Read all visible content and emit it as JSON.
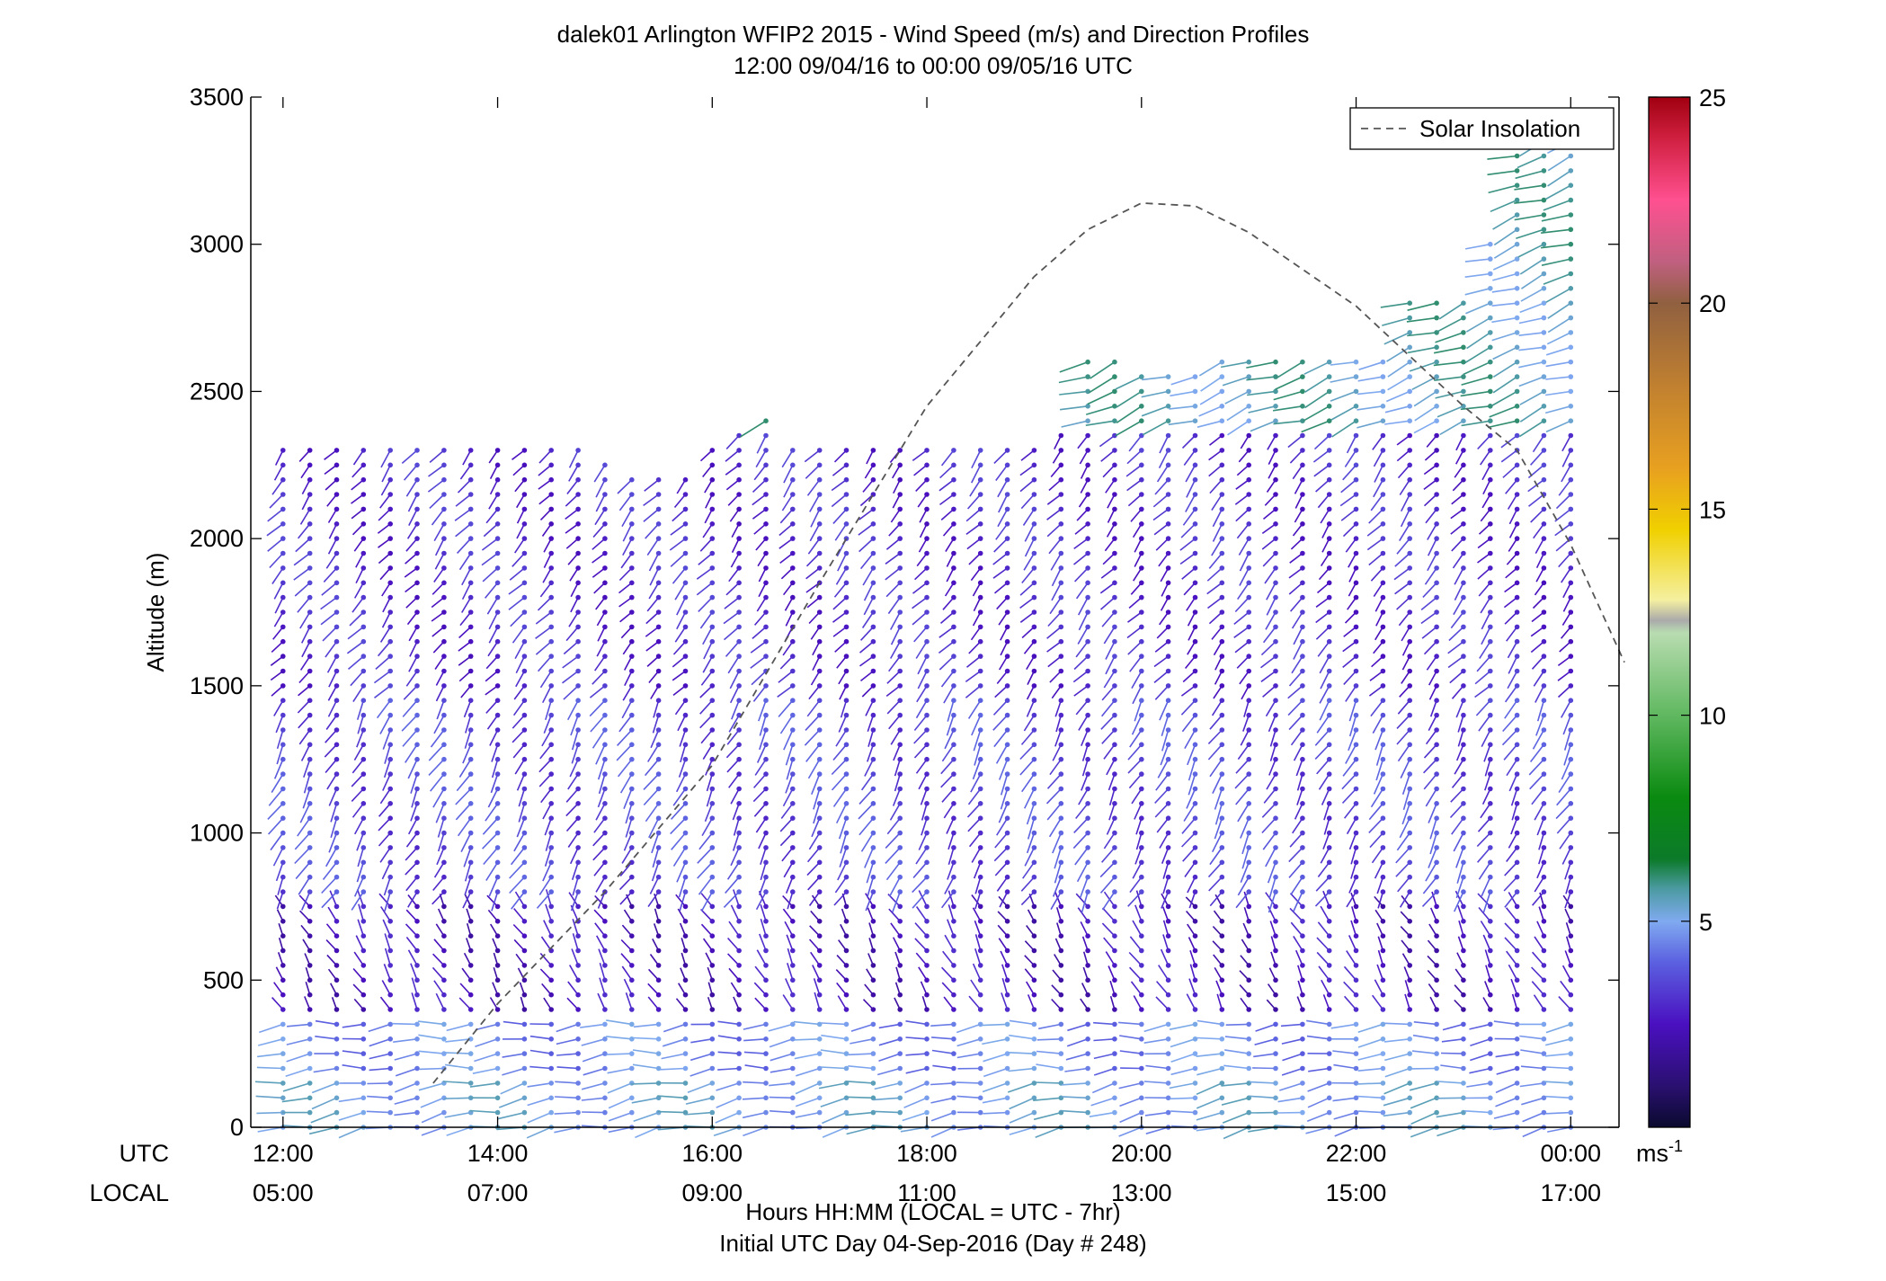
{
  "chart_data": {
    "type": "scatter",
    "title_line1": "dalek01 Arlington WFIP2 2015 - Wind Speed (m/s) and Direction Profiles",
    "title_line2": "12:00 09/04/16 to 00:00 09/05/16  UTC",
    "ylabel": "Altitude (m)",
    "ylim": [
      0,
      3500
    ],
    "yticks": [
      "0",
      "500",
      "1000",
      "1500",
      "2000",
      "2500",
      "3000",
      "3500"
    ],
    "ytick_values": [
      0,
      500,
      1000,
      1500,
      2000,
      2500,
      3000,
      3500
    ],
    "xlim_hours": [
      11.7,
      24.45
    ],
    "xticks": [
      {
        "hour": 12,
        "utc": "12:00",
        "local": "05:00"
      },
      {
        "hour": 14,
        "utc": "14:00",
        "local": "07:00"
      },
      {
        "hour": 16,
        "utc": "16:00",
        "local": "09:00"
      },
      {
        "hour": 18,
        "utc": "18:00",
        "local": "11:00"
      },
      {
        "hour": 20,
        "utc": "20:00",
        "local": "13:00"
      },
      {
        "hour": 22,
        "utc": "22:00",
        "local": "15:00"
      },
      {
        "hour": 24,
        "utc": "00:00",
        "local": "17:00"
      }
    ],
    "row_label_utc": "UTC",
    "row_label_local": "LOCAL",
    "xlabel_line1": "Hours HH:MM  (LOCAL = UTC - 7hr)",
    "xlabel_line2": "Initial UTC Day 04-Sep-2016 (Day # 248)",
    "legend": {
      "label": "Solar Insolation",
      "placement": "top-right"
    },
    "solar_insolation": {
      "x": [
        13.4,
        14.0,
        15.0,
        16.0,
        17.0,
        18.0,
        19.0,
        19.5,
        20.0,
        20.5,
        21.0,
        22.0,
        23.0,
        23.5,
        24.0,
        24.5
      ],
      "y": [
        150,
        420,
        800,
        1230,
        1850,
        2450,
        2890,
        3050,
        3140,
        3130,
        3040,
        2790,
        2450,
        2300,
        1980,
        1580
      ]
    },
    "colorbar": {
      "min": 0,
      "max": 25,
      "ticks": [
        "5",
        "10",
        "15",
        "20",
        "25"
      ],
      "tick_values": [
        5,
        10,
        15,
        20,
        25
      ],
      "unit_label": "ms",
      "unit_exponent": "-1",
      "stops": [
        {
          "v": 0,
          "c": "#0a0a2e"
        },
        {
          "v": 1,
          "c": "#2a1070"
        },
        {
          "v": 2.5,
          "c": "#4a10c0"
        },
        {
          "v": 4,
          "c": "#5b60e0"
        },
        {
          "v": 5,
          "c": "#80aaf0"
        },
        {
          "v": 5.8,
          "c": "#4a9aa0"
        },
        {
          "v": 6.5,
          "c": "#0c7a2a"
        },
        {
          "v": 8,
          "c": "#0a8a10"
        },
        {
          "v": 10,
          "c": "#60b860"
        },
        {
          "v": 12,
          "c": "#b8dcb0"
        },
        {
          "v": 12.3,
          "c": "#aaaaaa"
        },
        {
          "v": 12.8,
          "c": "#f5f0a0"
        },
        {
          "v": 14.5,
          "c": "#f0d000"
        },
        {
          "v": 16,
          "c": "#e8a020"
        },
        {
          "v": 18,
          "c": "#c08030"
        },
        {
          "v": 20,
          "c": "#906040"
        },
        {
          "v": 21,
          "c": "#c06080"
        },
        {
          "v": 22.5,
          "c": "#ff5090"
        },
        {
          "v": 24,
          "c": "#d02040"
        },
        {
          "v": 25,
          "c": "#a00010"
        }
      ]
    },
    "barbs": {
      "times_hours": [
        12.0,
        12.25,
        12.5,
        12.75,
        13.0,
        13.25,
        13.5,
        13.75,
        14.0,
        14.25,
        14.5,
        14.75,
        15.0,
        15.25,
        15.5,
        15.75,
        16.0,
        16.25,
        16.5,
        16.75,
        17.0,
        17.25,
        17.5,
        17.75,
        18.0,
        18.25,
        18.5,
        18.75,
        19.0,
        19.25,
        19.5,
        19.75,
        20.0,
        20.25,
        20.5,
        20.75,
        21.0,
        21.25,
        21.5,
        21.75,
        22.0,
        22.25,
        22.5,
        22.75,
        23.0,
        23.25,
        23.5,
        23.75,
        24.0
      ],
      "top_altitude_m": [
        2340,
        2340,
        2340,
        2340,
        2340,
        2340,
        2340,
        2340,
        2340,
        2340,
        2340,
        2340,
        2270,
        2240,
        2210,
        2220,
        2320,
        2360,
        2400,
        2340,
        2340,
        2340,
        2340,
        2340,
        2340,
        2340,
        2340,
        2340,
        2340,
        2380,
        2600,
        2620,
        2570,
        2560,
        2560,
        2620,
        2620,
        2620,
        2640,
        2640,
        2640,
        2640,
        2840,
        2840,
        2840,
        3000,
        3450,
        3450,
        3450
      ],
      "level_spacing_m": 50,
      "levels": [
        {
          "lo": 0,
          "hi": 200,
          "dir": 260,
          "speed": 5.0
        },
        {
          "lo": 200,
          "hi": 400,
          "dir": 265,
          "speed": 4.5
        },
        {
          "lo": 400,
          "hi": 800,
          "dir": 330,
          "speed": 2.5
        },
        {
          "lo": 800,
          "hi": 1500,
          "dir": 210,
          "speed": 3.5
        },
        {
          "lo": 1500,
          "hi": 2400,
          "dir": 220,
          "speed": 3.0
        },
        {
          "lo": 2400,
          "hi": 3500,
          "dir": 250,
          "speed": 5.5
        }
      ]
    }
  }
}
